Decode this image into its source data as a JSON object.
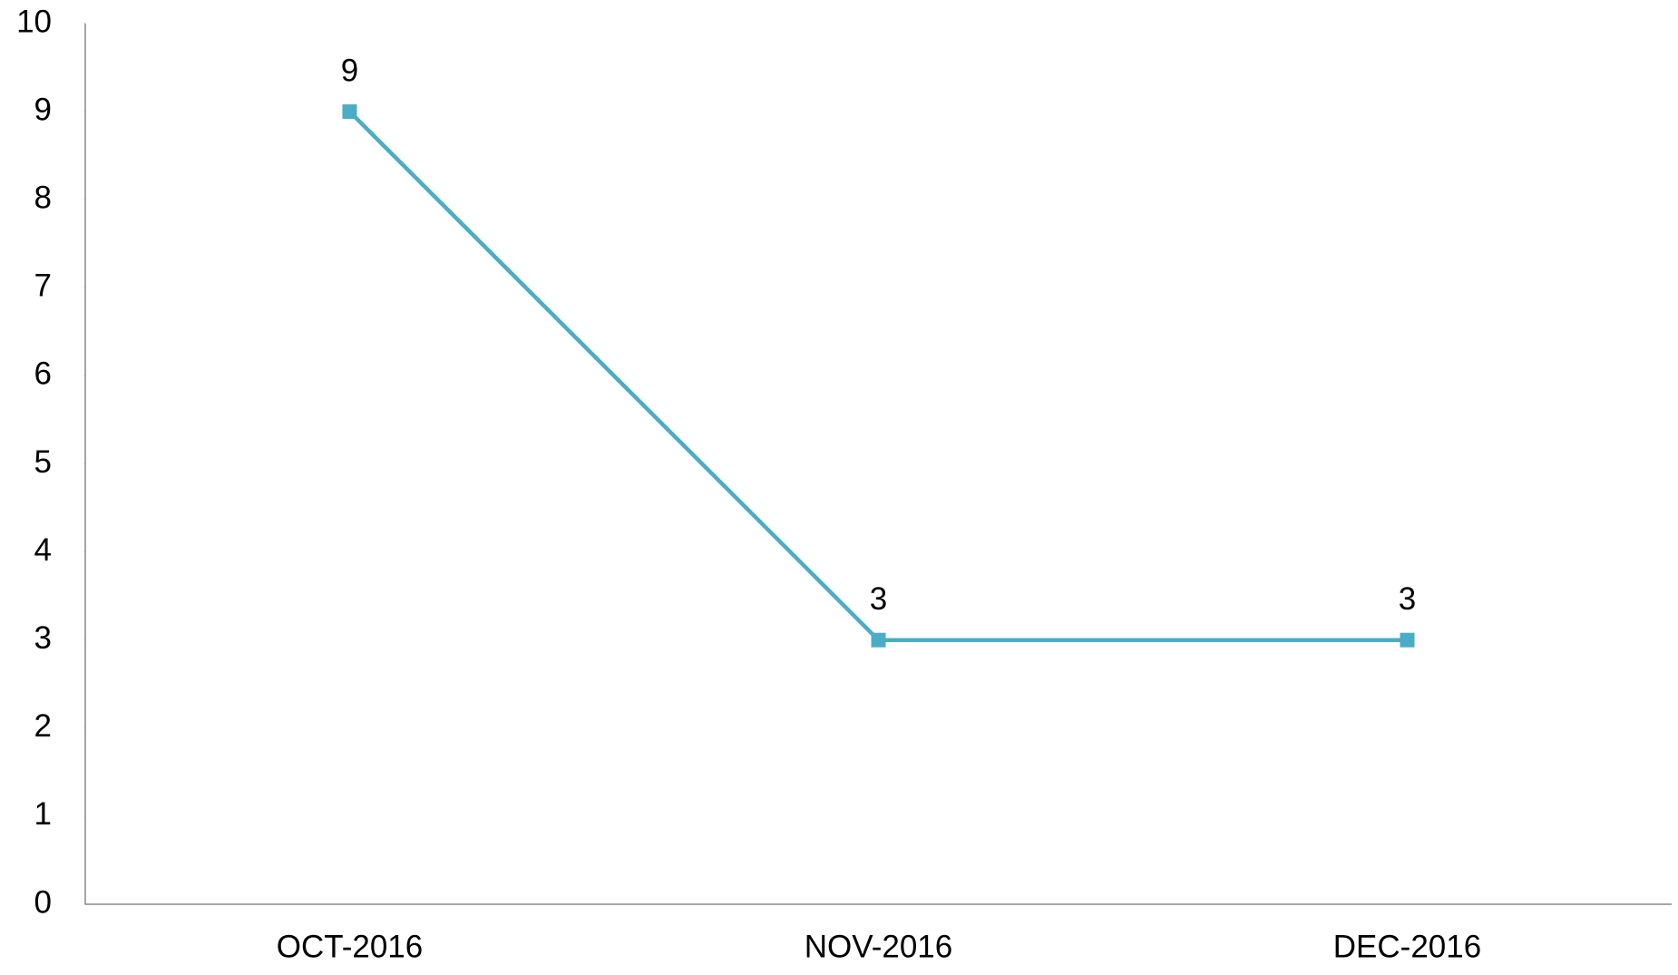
{
  "chart_data": {
    "type": "line",
    "categories": [
      "OCT-2016",
      "NOV-2016",
      "DEC-2016"
    ],
    "series": [
      {
        "color": "#4bacc6",
        "values": [
          9,
          3,
          3
        ]
      }
    ],
    "ylim": [
      0,
      10
    ],
    "yticks": [
      0,
      1,
      2,
      3,
      4,
      5,
      6,
      7,
      8,
      9,
      10
    ],
    "grid": false
  }
}
